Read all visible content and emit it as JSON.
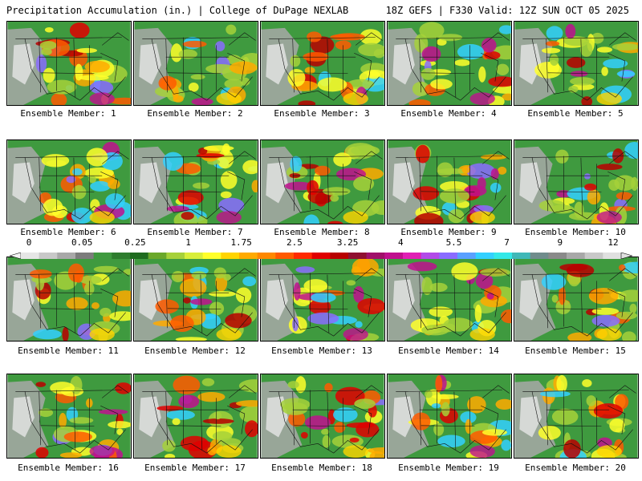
{
  "header": {
    "title": "Precipitation Accumulation (in.) | College of DuPage NEXLAB",
    "run_info": "18Z GEFS | F330 Valid: 12Z SUN OCT 05 2025"
  },
  "panels": [
    {
      "label": "Ensemble Member: 1"
    },
    {
      "label": "Ensemble Member: 2"
    },
    {
      "label": "Ensemble Member: 3"
    },
    {
      "label": "Ensemble Member: 4"
    },
    {
      "label": "Ensemble Member: 5"
    },
    {
      "label": "Ensemble Member: 6"
    },
    {
      "label": "Ensemble Member: 7"
    },
    {
      "label": "Ensemble Member: 8"
    },
    {
      "label": "Ensemble Member: 9"
    },
    {
      "label": "Ensemble Member: 10"
    },
    {
      "label": "Ensemble Member: 11"
    },
    {
      "label": "Ensemble Member: 12"
    },
    {
      "label": "Ensemble Member: 13"
    },
    {
      "label": "Ensemble Member: 14"
    },
    {
      "label": "Ensemble Member: 15"
    },
    {
      "label": "Ensemble Member: 16"
    },
    {
      "label": "Ensemble Member: 17"
    },
    {
      "label": "Ensemble Member: 18"
    },
    {
      "label": "Ensemble Member: 19"
    },
    {
      "label": "Ensemble Member: 20"
    }
  ],
  "colorbar": {
    "tick_labels": [
      "0",
      "0.05",
      "0.25",
      "1",
      "1.75",
      "2.5",
      "3.25",
      "4",
      "5.5",
      "7",
      "9",
      "12"
    ],
    "colors": [
      "#e6e6e6",
      "#c8c8c8",
      "#a8a8a8",
      "#7c7c7c",
      "#3f9a3f",
      "#2e7d2e",
      "#1f6b1f",
      "#6aa82a",
      "#a6d13a",
      "#d8ee3a",
      "#ffff2a",
      "#ffd400",
      "#ffaa00",
      "#ff8800",
      "#ff5a00",
      "#ff2a00",
      "#e00000",
      "#b80000",
      "#901030",
      "#a0106a",
      "#c0108e",
      "#e020b4",
      "#b24ae8",
      "#8a6cff",
      "#5aa0ff",
      "#33d0ff",
      "#33e8e8",
      "#40b8b8",
      "#708c8c",
      "#8a8a8a",
      "#a8a8a8",
      "#c8c8c8",
      "#e0e0e0"
    ]
  }
}
